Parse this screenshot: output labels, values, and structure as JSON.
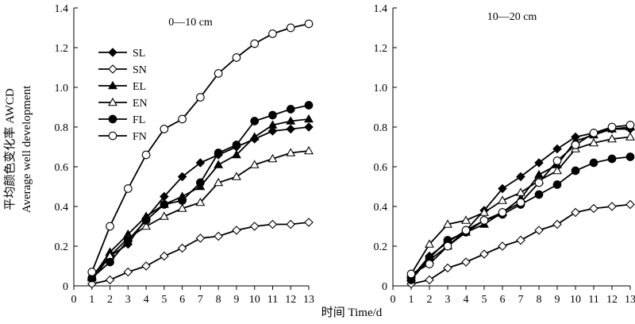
{
  "figure": {
    "xlabel": "时间 Time/d",
    "ylabel_cn": "平均颜色变化率 AWCD",
    "ylabel_en": "Average well development"
  },
  "chart_data": [
    {
      "type": "line",
      "title": "0—10 cm",
      "xlim": [
        0,
        13
      ],
      "ylim": [
        0,
        1.4
      ],
      "x": [
        1,
        2,
        3,
        4,
        5,
        6,
        7,
        8,
        9,
        10,
        11,
        12,
        13
      ],
      "xticks": [
        "0",
        "1",
        "2",
        "3",
        "4",
        "5",
        "6",
        "7",
        "8",
        "9",
        "10",
        "11",
        "12",
        "13"
      ],
      "yticks": [
        "0",
        "0.2",
        "0.4",
        "0.6",
        "0.8",
        "1.0",
        "1.2",
        "1.4"
      ],
      "grid": false,
      "legend_position": "upper-left",
      "series": [
        {
          "name": "SL",
          "marker": "diamond",
          "filled": true,
          "values": [
            0.03,
            0.15,
            0.21,
            0.34,
            0.45,
            0.55,
            0.62,
            0.66,
            0.7,
            0.74,
            0.78,
            0.79,
            0.8
          ]
        },
        {
          "name": "SN",
          "marker": "diamond",
          "filled": false,
          "values": [
            0.01,
            0.03,
            0.07,
            0.1,
            0.15,
            0.19,
            0.24,
            0.25,
            0.28,
            0.3,
            0.31,
            0.31,
            0.32
          ]
        },
        {
          "name": "EL",
          "marker": "triangle",
          "filled": true,
          "values": [
            0.04,
            0.17,
            0.26,
            0.35,
            0.41,
            0.45,
            0.5,
            0.61,
            0.66,
            0.75,
            0.81,
            0.83,
            0.84
          ]
        },
        {
          "name": "EN",
          "marker": "triangle",
          "filled": false,
          "values": [
            0.05,
            0.15,
            0.24,
            0.3,
            0.35,
            0.39,
            0.42,
            0.52,
            0.55,
            0.61,
            0.64,
            0.67,
            0.68
          ]
        },
        {
          "name": "FL",
          "marker": "circle",
          "filled": true,
          "values": [
            0.04,
            0.12,
            0.23,
            0.33,
            0.41,
            0.43,
            0.52,
            0.67,
            0.71,
            0.83,
            0.86,
            0.89,
            0.91
          ]
        },
        {
          "name": "FN",
          "marker": "circle",
          "filled": false,
          "values": [
            0.07,
            0.3,
            0.49,
            0.66,
            0.79,
            0.84,
            0.95,
            1.07,
            1.15,
            1.22,
            1.27,
            1.3,
            1.32
          ]
        }
      ]
    },
    {
      "type": "line",
      "title": "10—20 cm",
      "xlim": [
        0,
        13
      ],
      "ylim": [
        0,
        1.4
      ],
      "x": [
        1,
        2,
        3,
        4,
        5,
        6,
        7,
        8,
        9,
        10,
        11,
        12,
        13
      ],
      "xticks": [
        "0",
        "1",
        "2",
        "3",
        "4",
        "5",
        "6",
        "7",
        "8",
        "9",
        "10",
        "11",
        "12",
        "13"
      ],
      "yticks": [
        "0",
        "0.2",
        "0.4",
        "0.6",
        "0.8",
        "1.0",
        "1.2",
        "1.4"
      ],
      "grid": false,
      "series": [
        {
          "name": "SL",
          "marker": "diamond",
          "filled": true,
          "values": [
            0.04,
            0.15,
            0.22,
            0.28,
            0.38,
            0.49,
            0.55,
            0.62,
            0.69,
            0.75,
            0.77,
            0.79,
            0.79
          ]
        },
        {
          "name": "SN",
          "marker": "diamond",
          "filled": false,
          "values": [
            0.01,
            0.03,
            0.09,
            0.12,
            0.16,
            0.2,
            0.23,
            0.28,
            0.31,
            0.37,
            0.39,
            0.4,
            0.41
          ]
        },
        {
          "name": "EL",
          "marker": "triangle",
          "filled": true,
          "values": [
            0.04,
            0.13,
            0.2,
            0.27,
            0.31,
            0.37,
            0.44,
            0.56,
            0.61,
            0.73,
            0.76,
            0.79,
            0.8
          ]
        },
        {
          "name": "EN",
          "marker": "triangle",
          "filled": false,
          "values": [
            0.06,
            0.21,
            0.31,
            0.33,
            0.37,
            0.43,
            0.47,
            0.53,
            0.58,
            0.69,
            0.72,
            0.74,
            0.75
          ]
        },
        {
          "name": "FL",
          "marker": "circle",
          "filled": true,
          "values": [
            0.03,
            0.14,
            0.23,
            0.27,
            0.33,
            0.36,
            0.41,
            0.46,
            0.51,
            0.58,
            0.62,
            0.64,
            0.65
          ]
        },
        {
          "name": "FN",
          "marker": "circle",
          "filled": false,
          "values": [
            0.06,
            0.11,
            0.2,
            0.28,
            0.33,
            0.37,
            0.42,
            0.52,
            0.63,
            0.71,
            0.77,
            0.8,
            0.81
          ]
        }
      ]
    }
  ]
}
